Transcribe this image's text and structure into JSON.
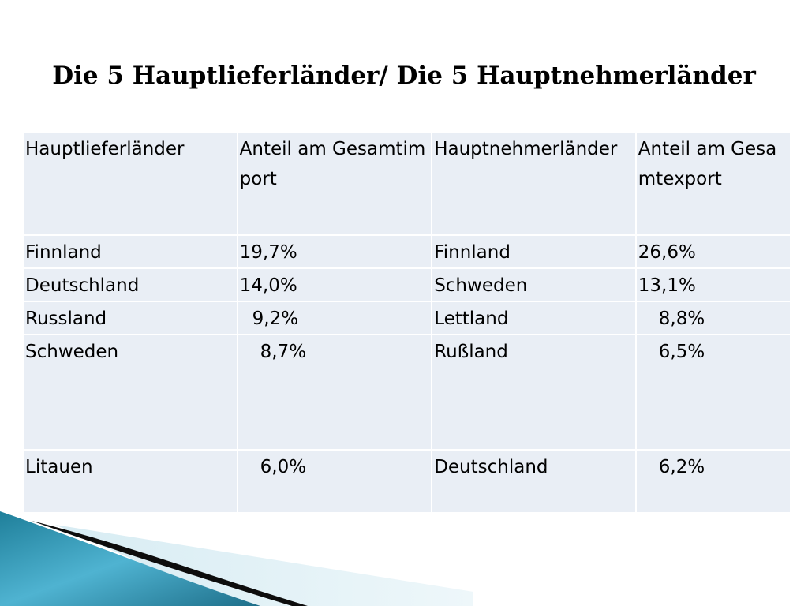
{
  "title": "Die 5 Hauptlieferländer/ Die 5 Hauptnehmerländer",
  "table": {
    "headers": [
      "Hauptlieferländer",
      "Anteil am Gesamtimport",
      "Hauptnehmerländer",
      "Anteil am Gesamtexport"
    ],
    "rows": [
      [
        "Finnland",
        "19,7%",
        "Finnland",
        "26,6%"
      ],
      [
        "Deutschland",
        "14,0%",
        "Schweden",
        "13,1%"
      ],
      [
        "Russland",
        "9,2%",
        "Lettland",
        "8,8%"
      ],
      [
        "Schweden",
        "8,7%",
        "Rußland",
        "6,5%"
      ],
      [
        "Litauen",
        "6,0%",
        "Deutschland",
        "6,2%"
      ]
    ]
  }
}
